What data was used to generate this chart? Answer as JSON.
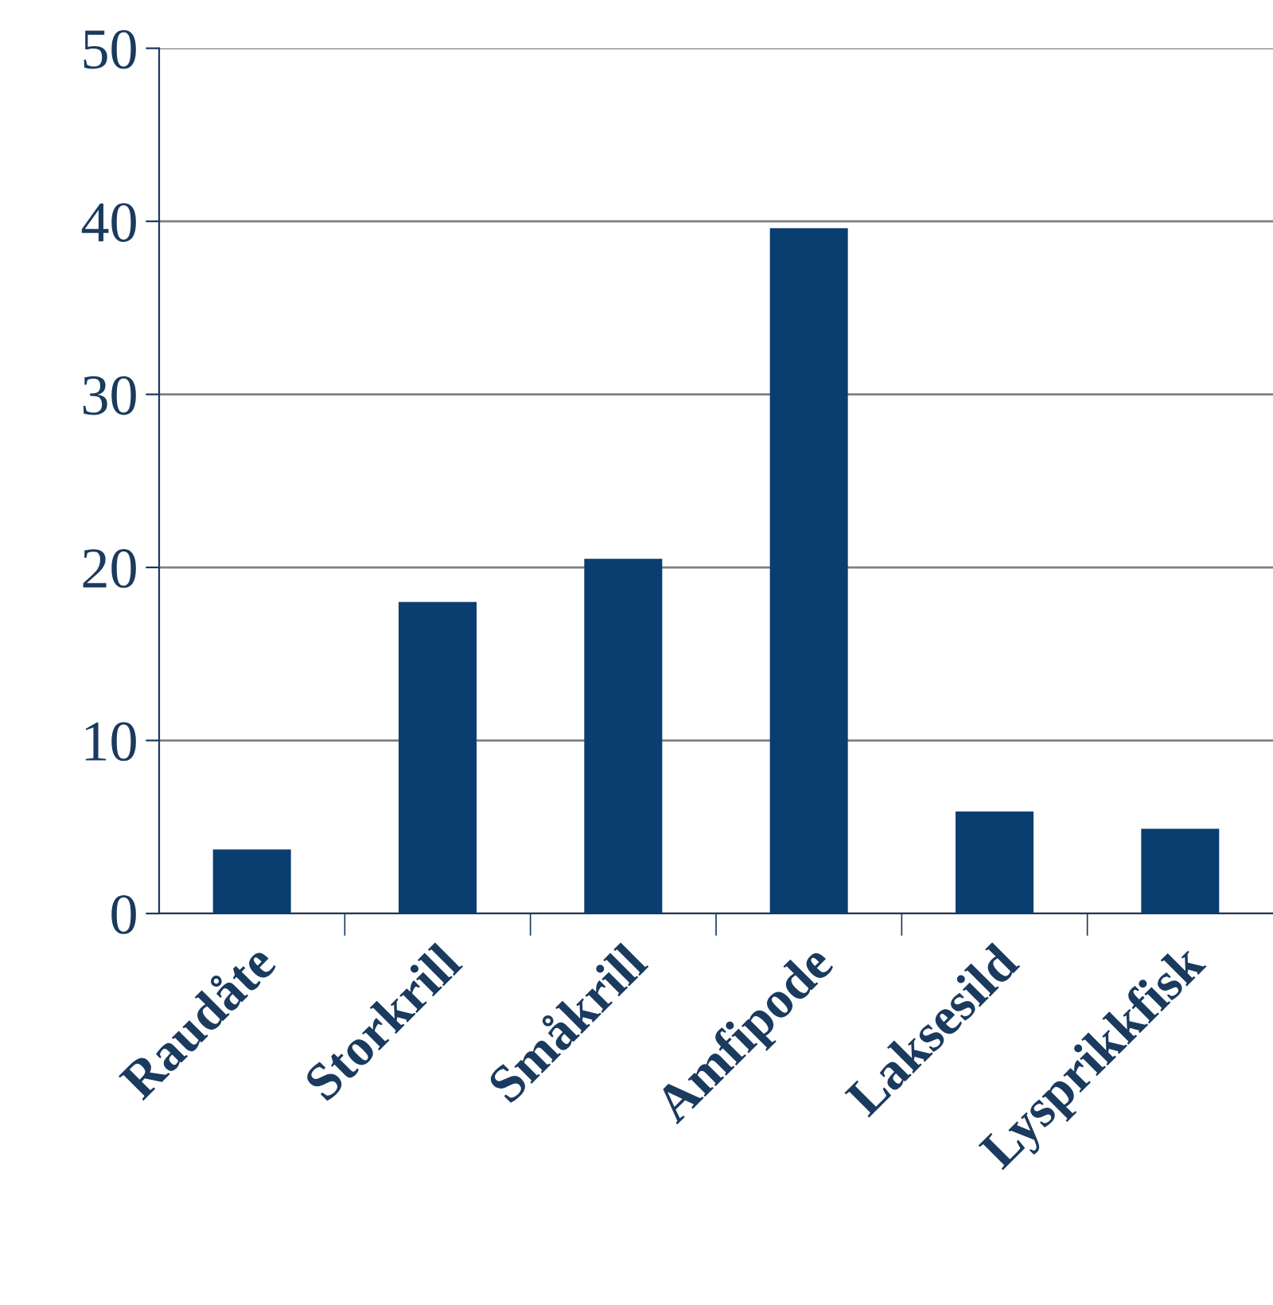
{
  "chart_data": {
    "type": "bar",
    "categories": [
      "Raudåte",
      "Storkrill",
      "Småkrill",
      "Amfipode",
      "Laksesild",
      "Lysprikkfisk"
    ],
    "values": [
      3.7,
      18.0,
      20.5,
      39.6,
      5.9,
      4.9
    ],
    "color": "#0a3e70",
    "ylim": [
      0,
      50
    ],
    "yticks": [
      0,
      10,
      20,
      30,
      40,
      50
    ],
    "grid": "y"
  }
}
